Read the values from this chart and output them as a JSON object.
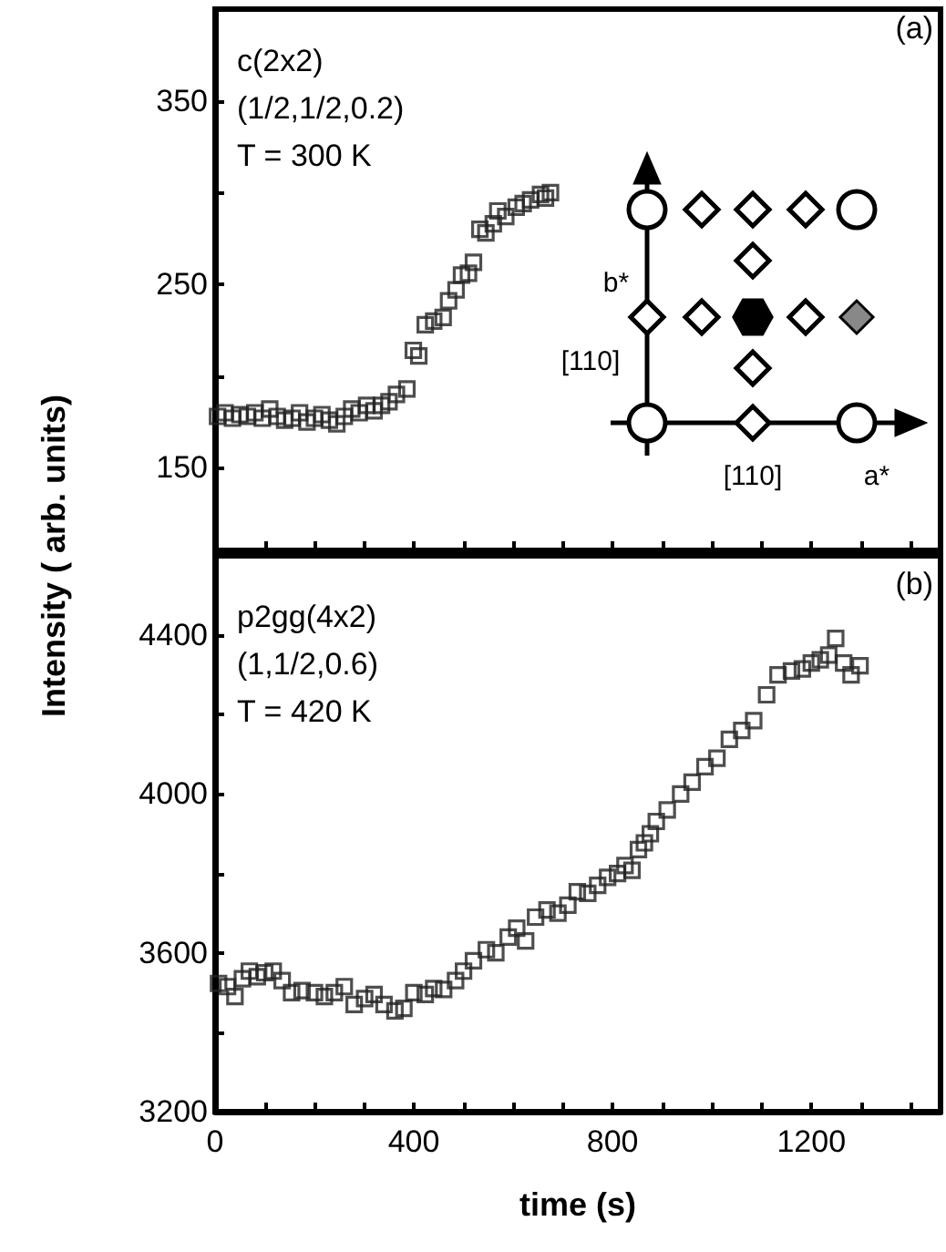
{
  "chart_data": [
    {
      "type": "scatter",
      "ylabel": "Intensity ( arb. units)",
      "marker": "square",
      "tick_labels": "y",
      "grid": false,
      "annotations": [
        "c(2x2)",
        "(1/2,1/2,0.2)",
        "T = 300 K",
        "(a)",
        "b*",
        "[110]",
        "[110]",
        "a*"
      ],
      "xlim": [
        0,
        1460
      ],
      "xticks": [
        0,
        100,
        200,
        300,
        400,
        500,
        600,
        700,
        800,
        900,
        1000,
        1100,
        1200,
        1300,
        1400
      ],
      "ylim": [
        105,
        400
      ],
      "yticks": [
        {
          "value": 150,
          "label": "150"
        },
        {
          "value": 200,
          "label": null
        },
        {
          "value": 250,
          "label": "250"
        },
        {
          "value": 300,
          "label": null
        },
        {
          "value": 350,
          "label": "350"
        }
      ],
      "series": [
        {
          "color": "#222222",
          "x": [
            5,
            20,
            35,
            50,
            65,
            80,
            95,
            110,
            125,
            140,
            155,
            170,
            185,
            200,
            215,
            230,
            245,
            260,
            275,
            290,
            305,
            320,
            335,
            350,
            365,
            386,
            399,
            410,
            423,
            440,
            459,
            470,
            485,
            496,
            510,
            520,
            533,
            545,
            560,
            569,
            585,
            606,
            620,
            635,
            655,
            665,
            675
          ],
          "values": [
            178,
            180,
            177,
            179,
            178,
            180,
            177,
            182,
            178,
            176,
            177,
            180,
            175,
            177,
            179,
            176,
            174,
            178,
            182,
            180,
            184,
            181,
            184,
            186,
            190,
            193,
            214,
            211,
            228,
            230,
            232,
            241,
            247,
            255,
            256,
            262,
            280,
            278,
            283,
            290,
            287,
            292,
            294,
            296,
            299,
            297,
            300
          ]
        }
      ]
    },
    {
      "type": "scatter",
      "xlabel": "time (s)",
      "marker": "square",
      "grid": false,
      "annotations": [
        "p2gg(4x2)",
        "(1,1/2,0.6)",
        "T = 420 K",
        "(b)"
      ],
      "xlim": [
        0,
        1460
      ],
      "xticks": [
        {
          "value": 0,
          "label": "0"
        },
        {
          "value": 100,
          "label": null
        },
        {
          "value": 200,
          "label": null
        },
        {
          "value": 300,
          "label": null
        },
        {
          "value": 400,
          "label": "400"
        },
        {
          "value": 500,
          "label": null
        },
        {
          "value": 600,
          "label": null
        },
        {
          "value": 700,
          "label": null
        },
        {
          "value": 800,
          "label": "800"
        },
        {
          "value": 900,
          "label": null
        },
        {
          "value": 1000,
          "label": null
        },
        {
          "value": 1100,
          "label": null
        },
        {
          "value": 1200,
          "label": "1200"
        },
        {
          "value": 1300,
          "label": null
        },
        {
          "value": 1400,
          "label": null
        }
      ],
      "ylim": [
        3200,
        4600
      ],
      "yticks": [
        {
          "value": 3200,
          "label": "3200"
        },
        {
          "value": 3400,
          "label": null
        },
        {
          "value": 3600,
          "label": "3600"
        },
        {
          "value": 3800,
          "label": null
        },
        {
          "value": 4000,
          "label": "4000"
        },
        {
          "value": 4200,
          "label": null
        },
        {
          "value": 4400,
          "label": "4400"
        }
      ],
      "series": [
        {
          "color": "#222222",
          "x": [
            7,
            25,
            40,
            55,
            69,
            85,
            100,
            117,
            135,
            154,
            175,
            200,
            220,
            240,
            260,
            280,
            301,
            320,
            340,
            362,
            380,
            400,
            423,
            440,
            460,
            484,
            500,
            520,
            546,
            565,
            590,
            607,
            625,
            645,
            668,
            690,
            710,
            729,
            750,
            770,
            790,
            810,
            825,
            839,
            852,
            864,
            876,
            888,
            910,
            937,
            960,
            986,
            1010,
            1035,
            1060,
            1084,
            1110,
            1133,
            1160,
            1182,
            1200,
            1218,
            1235,
            1249,
            1265,
            1280,
            1298
          ],
          "values": [
            3523,
            3515,
            3490,
            3535,
            3554,
            3540,
            3550,
            3554,
            3530,
            3500,
            3505,
            3500,
            3490,
            3500,
            3515,
            3470,
            3485,
            3495,
            3470,
            3454,
            3460,
            3500,
            3495,
            3510,
            3508,
            3530,
            3554,
            3580,
            3608,
            3600,
            3640,
            3662,
            3630,
            3690,
            3708,
            3700,
            3720,
            3754,
            3750,
            3770,
            3790,
            3800,
            3820,
            3808,
            3860,
            3877,
            3900,
            3931,
            3960,
            4000,
            4030,
            4069,
            4090,
            4138,
            4160,
            4185,
            4250,
            4300,
            4310,
            4315,
            4330,
            4338,
            4350,
            4392,
            4330,
            4300,
            4323
          ]
        }
      ]
    }
  ]
}
